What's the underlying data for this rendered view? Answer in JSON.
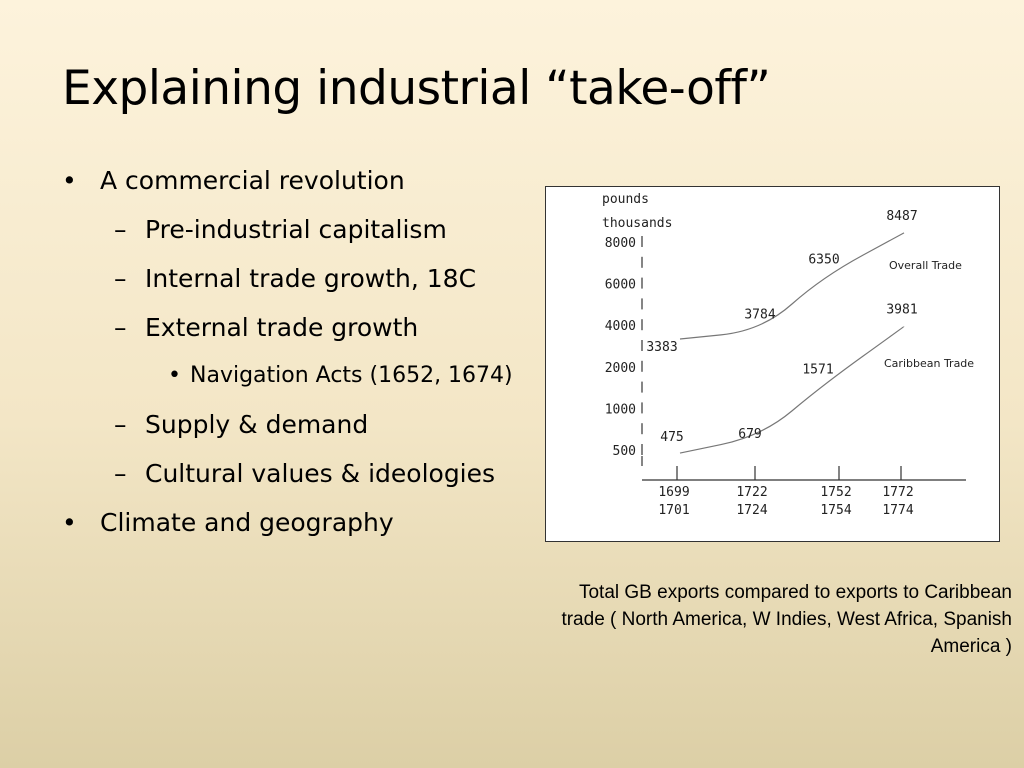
{
  "slide": {
    "title": "Explaining industrial “take-off”"
  },
  "bullets": [
    {
      "level": 1,
      "marker": "•",
      "text": "A commercial revolution"
    },
    {
      "level": 2,
      "marker": "–",
      "text": "Pre-industrial capitalism"
    },
    {
      "level": 2,
      "marker": "–",
      "text": "Internal trade growth, 18C"
    },
    {
      "level": 2,
      "marker": "–",
      "text": "External trade growth"
    },
    {
      "level": 3,
      "marker": "•",
      "text": "Navigation Acts (1652, 1674)"
    },
    {
      "level": 2,
      "marker": "–",
      "text": "Supply & demand"
    },
    {
      "level": 2,
      "marker": "–",
      "text": "Cultural values & ideologies"
    },
    {
      "level": 1,
      "marker": "•",
      "text": "Climate and geography"
    }
  ],
  "chart_data": {
    "type": "line",
    "ylabel_line1": "pounds",
    "ylabel_line2": "thousands",
    "y_ticks": [
      {
        "label": "8000",
        "value": 8000
      },
      {
        "label": "6000",
        "value": 6000
      },
      {
        "label": "4000",
        "value": 4000
      },
      {
        "label": "2000",
        "value": 2000
      },
      {
        "label": "1000",
        "value": 1000
      },
      {
        "label": "500",
        "value": 500
      }
    ],
    "x_categories": [
      {
        "line1": "1699",
        "line2": "1701"
      },
      {
        "line1": "1722",
        "line2": "1724"
      },
      {
        "line1": "1752",
        "line2": "1754"
      },
      {
        "line1": "1772",
        "line2": "1774"
      }
    ],
    "series": [
      {
        "name": "Overall Trade",
        "values": [
          3383,
          3784,
          6350,
          8487
        ],
        "value_labels": [
          "3383",
          "3784",
          "6350",
          "8487"
        ]
      },
      {
        "name": "Caribbean Trade",
        "values": [
          475,
          679,
          1571,
          3981
        ],
        "value_labels": [
          "475",
          "679",
          "1571",
          "3981"
        ]
      }
    ]
  },
  "caption": "Total GB exports compared to exports to Caribbean trade ( North America, W Indies, West Africa, Spanish America )"
}
